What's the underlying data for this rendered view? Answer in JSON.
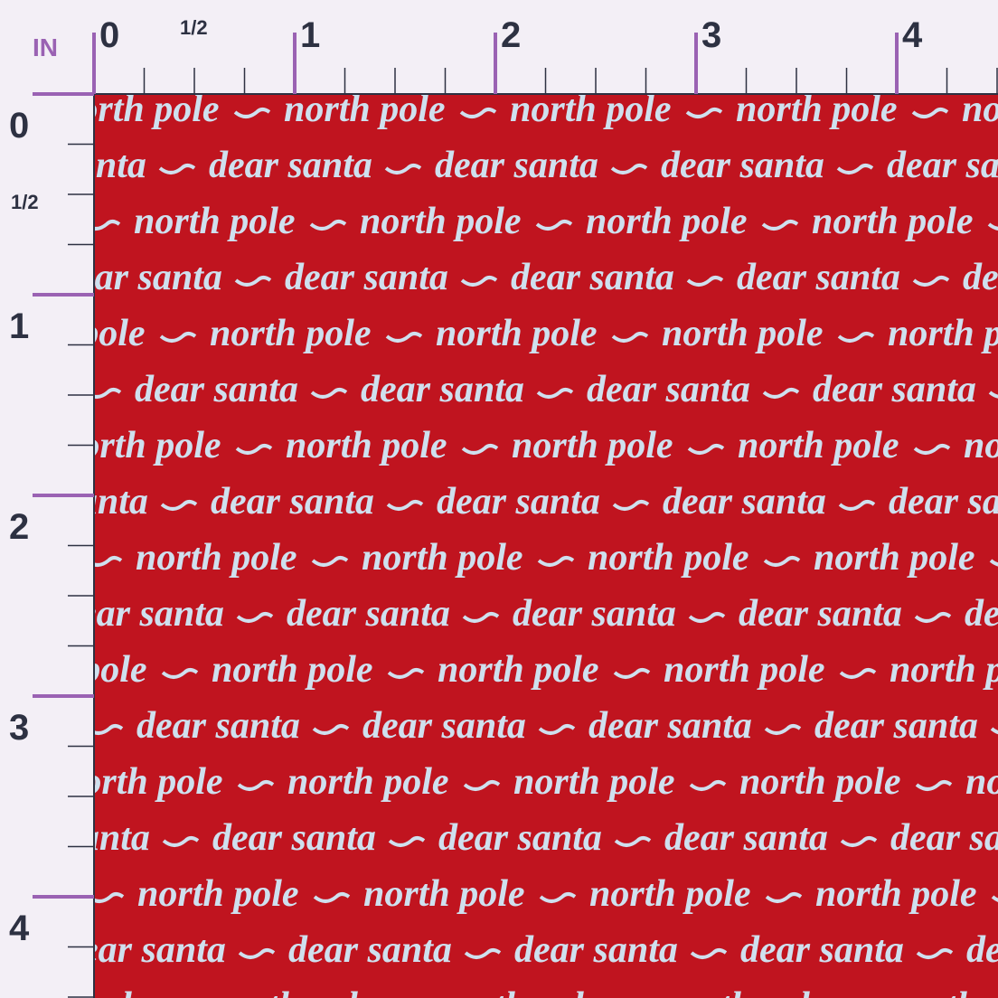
{
  "ruler": {
    "unit": "IN",
    "top_labels": [
      "0",
      "1/2",
      "1",
      "2",
      "3",
      "4"
    ],
    "left_labels": [
      "0",
      "1/2",
      "1",
      "2",
      "3",
      "4"
    ]
  },
  "pattern": {
    "phrases": [
      "north pole",
      "dear santa"
    ]
  }
}
